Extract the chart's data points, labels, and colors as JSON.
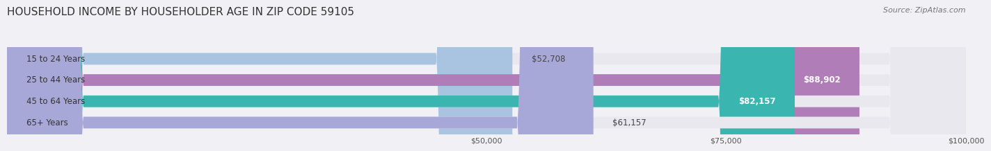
{
  "title": "HOUSEHOLD INCOME BY HOUSEHOLDER AGE IN ZIP CODE 59105",
  "source": "Source: ZipAtlas.com",
  "categories": [
    "15 to 24 Years",
    "25 to 44 Years",
    "45 to 64 Years",
    "65+ Years"
  ],
  "values": [
    52708,
    88902,
    82157,
    61157
  ],
  "bar_colors": [
    "#a8c4e0",
    "#b07db8",
    "#3ab5b0",
    "#a8a8d8"
  ],
  "label_colors": [
    "#555555",
    "#ffffff",
    "#ffffff",
    "#555555"
  ],
  "x_min": 0,
  "x_max": 100000,
  "x_ticks": [
    50000,
    75000,
    100000
  ],
  "x_tick_labels": [
    "$50,000",
    "$75,000",
    "$100,000"
  ],
  "bar_height": 0.55,
  "background_color": "#f0f0f5",
  "bar_bg_color": "#e8e8ee",
  "title_fontsize": 11,
  "source_fontsize": 8,
  "label_fontsize": 8.5,
  "tick_fontsize": 8,
  "cat_fontsize": 8.5
}
